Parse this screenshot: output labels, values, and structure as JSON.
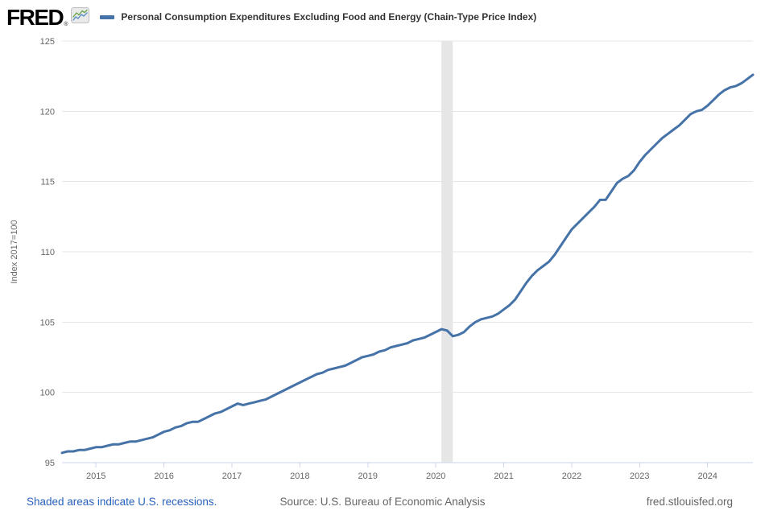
{
  "header": {
    "logo": "FRED",
    "logo_registered": "®",
    "legend_marker_color": "#4572a7",
    "series_label": "Personal Consumption Expenditures Excluding Food and Energy (Chain-Type Price Index)"
  },
  "footer": {
    "recession_note": "Shaded areas indicate U.S. recessions.",
    "source": "Source: U.S. Bureau of Economic Analysis",
    "site": "fred.stlouisfed.org"
  },
  "chart_data": {
    "type": "line",
    "title": "Personal Consumption Expenditures Excluding Food and Energy (Chain-Type Price Index)",
    "xlabel": "",
    "ylabel": "Index 2017=100",
    "ylim": [
      95,
      125
    ],
    "yticks": [
      95,
      100,
      105,
      110,
      115,
      120,
      125
    ],
    "xticks_years": [
      2015,
      2016,
      2017,
      2018,
      2019,
      2020,
      2021,
      2022,
      2023,
      2024
    ],
    "frequency": "monthly",
    "grid": true,
    "legend_position": "top",
    "line_color": "#4572a7",
    "grid_color": "#e6e6e6",
    "axis_color": "#ccd6eb",
    "recession_band": {
      "from": "2020-02",
      "to": "2020-04",
      "color": "#e6e6e6"
    },
    "series": [
      {
        "name": "Personal Consumption Expenditures Excluding Food and Energy (Chain-Type Price Index)",
        "months": [
          "2014-07",
          "2014-08",
          "2014-09",
          "2014-10",
          "2014-11",
          "2014-12",
          "2015-01",
          "2015-02",
          "2015-03",
          "2015-04",
          "2015-05",
          "2015-06",
          "2015-07",
          "2015-08",
          "2015-09",
          "2015-10",
          "2015-11",
          "2015-12",
          "2016-01",
          "2016-02",
          "2016-03",
          "2016-04",
          "2016-05",
          "2016-06",
          "2016-07",
          "2016-08",
          "2016-09",
          "2016-10",
          "2016-11",
          "2016-12",
          "2017-01",
          "2017-02",
          "2017-03",
          "2017-04",
          "2017-05",
          "2017-06",
          "2017-07",
          "2017-08",
          "2017-09",
          "2017-10",
          "2017-11",
          "2017-12",
          "2018-01",
          "2018-02",
          "2018-03",
          "2018-04",
          "2018-05",
          "2018-06",
          "2018-07",
          "2018-08",
          "2018-09",
          "2018-10",
          "2018-11",
          "2018-12",
          "2019-01",
          "2019-02",
          "2019-03",
          "2019-04",
          "2019-05",
          "2019-06",
          "2019-07",
          "2019-08",
          "2019-09",
          "2019-10",
          "2019-11",
          "2019-12",
          "2020-01",
          "2020-02",
          "2020-03",
          "2020-04",
          "2020-05",
          "2020-06",
          "2020-07",
          "2020-08",
          "2020-09",
          "2020-10",
          "2020-11",
          "2020-12",
          "2021-01",
          "2021-02",
          "2021-03",
          "2021-04",
          "2021-05",
          "2021-06",
          "2021-07",
          "2021-08",
          "2021-09",
          "2021-10",
          "2021-11",
          "2021-12",
          "2022-01",
          "2022-02",
          "2022-03",
          "2022-04",
          "2022-05",
          "2022-06",
          "2022-07",
          "2022-08",
          "2022-09",
          "2022-10",
          "2022-11",
          "2022-12",
          "2023-01",
          "2023-02",
          "2023-03",
          "2023-04",
          "2023-05",
          "2023-06",
          "2023-07",
          "2023-08",
          "2023-09",
          "2023-10",
          "2023-11",
          "2023-12",
          "2024-01",
          "2024-02",
          "2024-03",
          "2024-04",
          "2024-05",
          "2024-06",
          "2024-07",
          "2024-08",
          "2024-09"
        ],
        "values": [
          95.7,
          95.8,
          95.8,
          95.9,
          95.9,
          96.0,
          96.1,
          96.1,
          96.2,
          96.3,
          96.3,
          96.4,
          96.5,
          96.5,
          96.6,
          96.7,
          96.8,
          97.0,
          97.2,
          97.3,
          97.5,
          97.6,
          97.8,
          97.9,
          97.9,
          98.1,
          98.3,
          98.5,
          98.6,
          98.8,
          99.0,
          99.2,
          99.1,
          99.2,
          99.3,
          99.4,
          99.5,
          99.7,
          99.9,
          100.1,
          100.3,
          100.5,
          100.7,
          100.9,
          101.1,
          101.3,
          101.4,
          101.6,
          101.7,
          101.8,
          101.9,
          102.1,
          102.3,
          102.5,
          102.6,
          102.7,
          102.9,
          103.0,
          103.2,
          103.3,
          103.4,
          103.5,
          103.7,
          103.8,
          103.9,
          104.1,
          104.3,
          104.5,
          104.4,
          104.0,
          104.1,
          104.3,
          104.7,
          105.0,
          105.2,
          105.3,
          105.4,
          105.6,
          105.9,
          106.2,
          106.6,
          107.2,
          107.8,
          108.3,
          108.7,
          109.0,
          109.3,
          109.8,
          110.4,
          111.0,
          111.6,
          112.0,
          112.4,
          112.8,
          113.2,
          113.7,
          113.7,
          114.3,
          114.9,
          115.2,
          115.4,
          115.8,
          116.4,
          116.9,
          117.3,
          117.7,
          118.1,
          118.4,
          118.7,
          119.0,
          119.4,
          119.8,
          120.0,
          120.1,
          120.4,
          120.8,
          121.2,
          121.5,
          121.7,
          121.8,
          122.0,
          122.3,
          122.6
        ]
      }
    ]
  }
}
